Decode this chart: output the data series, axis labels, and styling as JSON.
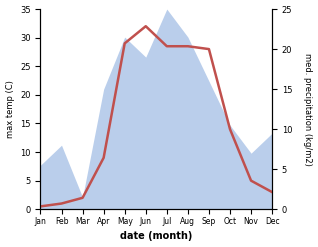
{
  "months": [
    "Jan",
    "Feb",
    "Mar",
    "Apr",
    "May",
    "Jun",
    "Jul",
    "Aug",
    "Sep",
    "Oct",
    "Nov",
    "Dec"
  ],
  "temp": [
    0.5,
    1.0,
    2.0,
    9.0,
    29.0,
    32.0,
    28.5,
    28.5,
    28.0,
    14.0,
    5.0,
    3.0
  ],
  "precip": [
    5.5,
    8.0,
    1.5,
    15.0,
    21.5,
    19.0,
    25.0,
    21.5,
    16.0,
    10.5,
    7.0,
    9.5
  ],
  "temp_color": "#c0504d",
  "precip_fill_color": "#aec6e8",
  "ylim_temp": [
    0,
    35
  ],
  "ylim_precip": [
    0,
    25
  ],
  "ylabel_left": "max temp (C)",
  "ylabel_right": "med. precipitation (kg/m2)",
  "xlabel": "date (month)",
  "temp_linewidth": 1.8,
  "bg_color": "#ffffff"
}
